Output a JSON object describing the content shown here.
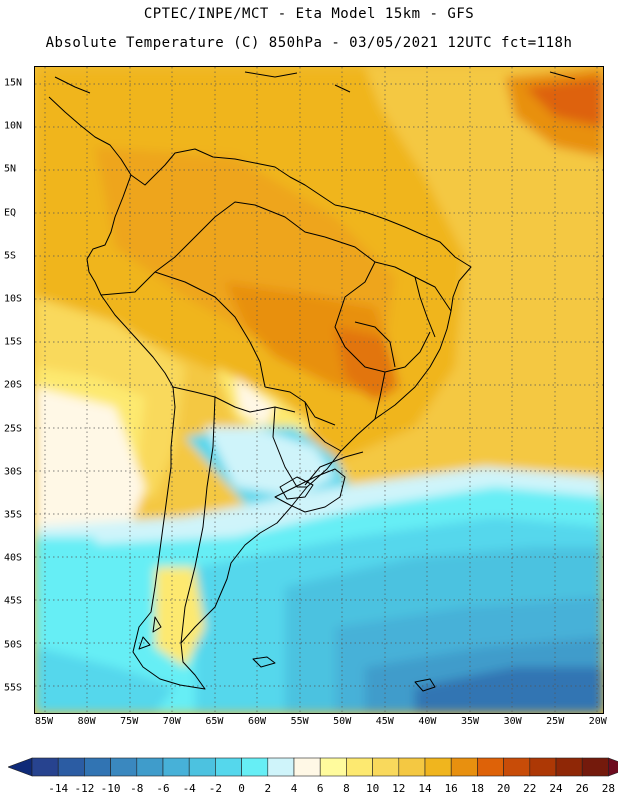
{
  "header": {
    "line1": "CPTEC/INPE/MCT -  Eta Model 15km - GFS",
    "line2": "Absolute Temperature (C) 850hPa - 03/05/2021 12UTC fct=118h"
  },
  "map": {
    "lat_labels": [
      "15N",
      "10N",
      "5N",
      "EQ",
      "5S",
      "10S",
      "15S",
      "20S",
      "25S",
      "30S",
      "35S",
      "40S",
      "45S",
      "50S",
      "55S"
    ],
    "lon_labels": [
      "85W",
      "80W",
      "75W",
      "70W",
      "65W",
      "60W",
      "55W",
      "50W",
      "45W",
      "40W",
      "35W",
      "30W",
      "25W",
      "20W"
    ]
  },
  "colorbar": {
    "labels": [
      "-14",
      "-12",
      "-10",
      "-8",
      "-6",
      "-4",
      "-2",
      "0",
      "2",
      "4",
      "6",
      "8",
      "10",
      "12",
      "14",
      "16",
      "18",
      "20",
      "22",
      "24",
      "26",
      "28"
    ],
    "colors": [
      "#27438f",
      "#2b5ca3",
      "#3174b3",
      "#3a88bf",
      "#3f9ccb",
      "#47b1d8",
      "#4cc2e0",
      "#55d7ec",
      "#66eef5",
      "#cff4fa",
      "#fff8e6",
      "#fffb9d",
      "#fde970",
      "#f9d95c",
      "#f4c842",
      "#f0b51e",
      "#e8900f",
      "#de6208",
      "#c84c08",
      "#ad3805",
      "#8f2706",
      "#741a0c"
    ],
    "low_color": "#0f2a78",
    "high_color": "#6d0b1e"
  }
}
